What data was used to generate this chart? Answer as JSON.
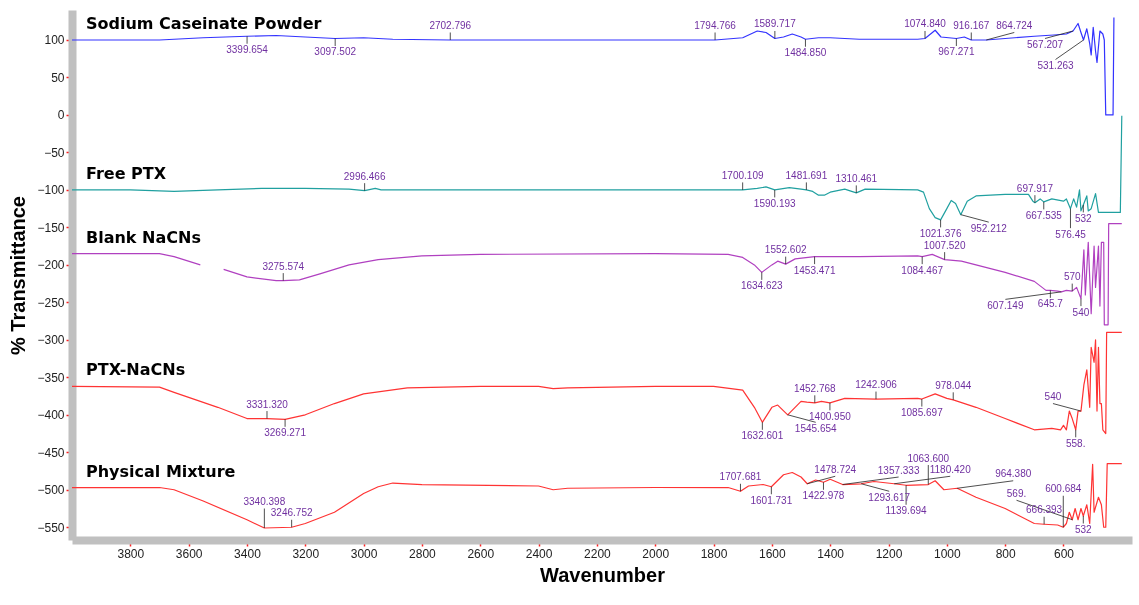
{
  "chart_data": {
    "type": "line",
    "xlabel": "Wavenumber",
    "ylabel": "% Transmittance",
    "xlim": [
      4000,
      365
    ],
    "ylim": [
      -567,
      140
    ],
    "xticks": [
      3800,
      3600,
      3400,
      3200,
      3000,
      2800,
      2600,
      2400,
      2200,
      2000,
      1800,
      1600,
      1400,
      1200,
      1000,
      800,
      600
    ],
    "yticks": [
      100,
      50,
      0,
      -50,
      -100,
      -150,
      -200,
      -250,
      -300,
      -350,
      -400,
      -450,
      -500,
      -550
    ],
    "grid": false,
    "line_style": "solid",
    "marker": "none",
    "series": [
      {
        "name": "Sodium Caseinate Powder",
        "color": "#3333ff",
        "x": [
          4000,
          3700,
          3550,
          3400,
          3300,
          3200,
          3097.502,
          3000,
          2900,
          2702.796,
          2400,
          2000,
          1794.766,
          1700,
          1650,
          1620,
          1589.717,
          1560,
          1530,
          1500,
          1484.85,
          1440,
          1400,
          1300,
          1200,
          1100,
          1074.84,
          1040,
          1020,
          967.271,
          940,
          916.167,
          864.724,
          800,
          700,
          620,
          590,
          567.207,
          550,
          540,
          531.263,
          520,
          510,
          505,
          498,
          490,
          485,
          475,
          465,
          460,
          455,
          430,
          427
        ],
        "values": [
          100,
          100,
          103,
          105,
          106,
          104,
          102,
          103,
          101,
          100,
          100,
          100,
          100,
          103,
          112,
          110,
          102,
          104,
          108,
          104,
          101,
          103,
          103,
          101,
          101,
          101,
          102,
          113,
          104,
          102,
          104,
          100,
          100,
          102,
          105,
          107,
          108,
          112,
          122,
          110,
          100,
          115,
          95,
          80,
          117,
          85,
          70,
          112,
          108,
          100,
          0,
          0,
          130
        ]
      },
      {
        "name": "Free PTX",
        "color": "#20a0a0",
        "x": [
          4000,
          3800,
          3650,
          3500,
          3350,
          3200,
          3050,
          2996.466,
          2960,
          2940,
          2000,
          1700.109,
          1650,
          1620,
          1590.193,
          1540,
          1500,
          1481.691,
          1460,
          1440,
          1420,
          1400,
          1350,
          1310.461,
          1280,
          1100,
          1080,
          1060,
          1040,
          1021.376,
          1000,
          985,
          970,
          952.212,
          930,
          900,
          800,
          720,
          705,
          697.917,
          680,
          667.535,
          640,
          600,
          590,
          576,
          565,
          555,
          545,
          540,
          532,
          520,
          515,
          505,
          490,
          480,
          470,
          430,
          405,
          400
        ],
        "values": [
          -100,
          -100,
          -102,
          -100,
          -98,
          -98,
          -99,
          -101,
          -98,
          -100,
          -100,
          -100,
          -98,
          -96,
          -100,
          -97,
          -99,
          -100,
          -102,
          -107,
          -107,
          -103,
          -99,
          -104,
          -99,
          -100,
          -103,
          -125,
          -137,
          -140,
          -125,
          -114,
          -118,
          -133,
          -115,
          -108,
          -106,
          -106,
          -115,
          -117,
          -112,
          -116,
          -112,
          -115,
          -112,
          -125,
          -112,
          -123,
          -100,
          -128,
          -120,
          -108,
          -128,
          -125,
          -105,
          -130,
          -130,
          -130,
          -130,
          -1
        ]
      },
      {
        "name": "Blank NaCNs",
        "color": "#b040c0",
        "x": [
          4000,
          3800,
          3700,
          3650,
          3560,
          3520,
          3480,
          3400,
          3300,
          3275.574,
          3220,
          3150,
          3050,
          2950,
          2800,
          2600,
          2000,
          1750,
          1700,
          1660,
          1634.623,
          1600,
          1580,
          1552.602,
          1520,
          1453.471,
          1300,
          1100,
          1084.467,
          1050,
          1007.52,
          950,
          800,
          700,
          660,
          645,
          620,
          607.149,
          590,
          570,
          555,
          540,
          530,
          525,
          515,
          505,
          495,
          490,
          480,
          475,
          470,
          462,
          460,
          447,
          445,
          400
        ],
        "values": [
          -185,
          -185,
          -185,
          -189,
          -200,
          null,
          -206,
          -216,
          -221,
          -221,
          -220,
          -212,
          -200,
          -193,
          -188,
          -186,
          -185,
          -186,
          -190,
          -200,
          -210,
          -200,
          -195,
          -199,
          -192,
          -189,
          -189,
          -188,
          -189,
          -186,
          -193,
          -195,
          -210,
          -222,
          -234,
          -234,
          -235,
          -236,
          -234,
          -235,
          -230,
          -245,
          -180,
          -240,
          -170,
          -265,
          -175,
          -230,
          -175,
          -255,
          -170,
          -170,
          -280,
          -280,
          -145,
          -145
        ]
      },
      {
        "name": "PTX-NaCNs",
        "color": "#ff3333",
        "x": [
          4000,
          3700,
          3650,
          3500,
          3400,
          3331.32,
          3269.271,
          3200,
          3100,
          3000,
          2850,
          2600,
          2400,
          2350,
          2300,
          2000,
          1800,
          1700,
          1660,
          1632.601,
          1600,
          1580,
          1545.654,
          1500,
          1480,
          1452.768,
          1430,
          1400.95,
          1350,
          1242.906,
          1100,
          1085.697,
          1040,
          1000,
          978.044,
          900,
          800,
          700,
          640,
          610,
          600,
          590,
          580,
          570,
          558,
          550,
          540,
          530,
          520,
          510,
          505,
          495,
          490,
          485,
          480,
          475,
          470,
          465,
          455,
          452,
          400
        ],
        "values": [
          -362,
          -363,
          -370,
          -390,
          -405,
          -405,
          -406,
          -400,
          -385,
          -372,
          -364,
          -362,
          -362,
          -365,
          -364,
          -362,
          -362,
          -367,
          -390,
          -410,
          -390,
          -387,
          -400,
          -382,
          -383,
          -384,
          -382,
          -384,
          -378,
          -379,
          -378,
          -379,
          -372,
          -378,
          -380,
          -390,
          -405,
          -420,
          -418,
          -420,
          -414,
          -420,
          -395,
          -405,
          -420,
          -395,
          -395,
          -360,
          -340,
          -390,
          -310,
          -330,
          -300,
          -395,
          -310,
          -385,
          -385,
          -420,
          -425,
          -290,
          -290
        ]
      },
      {
        "name": "Physical Mixture",
        "color": "#ff3333",
        "x": [
          4000,
          3700,
          3650,
          3550,
          3400,
          3340.398,
          3246.752,
          3200,
          3100,
          3000,
          2950,
          2900,
          2800,
          2400,
          2350,
          2300,
          2000,
          1750,
          1707.681,
          1680,
          1630,
          1601.731,
          1560,
          1530,
          1500,
          1478.724,
          1450,
          1422.978,
          1400,
          1357.333,
          1293.617,
          1250,
          1180.42,
          1139.694,
          1063.6,
          1040,
          1010,
          964.38,
          900,
          800,
          700,
          666.393,
          620,
          600.684,
          590,
          580,
          570,
          560,
          550,
          540,
          532,
          520,
          510,
          500,
          495,
          480,
          470,
          462,
          455,
          450,
          400
        ],
        "values": [
          -497,
          -497,
          -500,
          -515,
          -540,
          -551,
          -550,
          -545,
          -530,
          -505,
          -496,
          -491,
          -493,
          -495,
          -500,
          -498,
          -497,
          -497,
          -502,
          -495,
          -493,
          -496,
          -480,
          -477,
          -483,
          -492,
          -487,
          -490,
          -486,
          -493,
          -492,
          -489,
          -492,
          -494,
          -493,
          -488,
          -500,
          -498,
          -510,
          -525,
          -545,
          -546,
          -547,
          -550,
          -545,
          -530,
          -540,
          -525,
          -540,
          -525,
          -535,
          -520,
          -545,
          -466,
          -530,
          -510,
          -520,
          -550,
          -550,
          -465,
          -465
        ]
      }
    ],
    "annotations": [
      {
        "text": "3399.654",
        "x": 3399.654,
        "y": 105
      },
      {
        "text": "3097.502",
        "x": 3097.502,
        "y": 102
      },
      {
        "text": "2702.796",
        "x": 2702.796,
        "y": 100
      },
      {
        "text": "1794.766",
        "x": 1794.766,
        "y": 100
      },
      {
        "text": "1589.717",
        "x": 1589.717,
        "y": 102
      },
      {
        "text": "1484.850",
        "x": 1484.85,
        "y": 101
      },
      {
        "text": "1074.840",
        "x": 1074.84,
        "y": 102
      },
      {
        "text": "967.271",
        "x": 967.271,
        "y": 102
      },
      {
        "text": "916.167",
        "x": 916.167,
        "y": 100
      },
      {
        "text": "864.724",
        "x": 864.724,
        "y": 100
      },
      {
        "text": "567.207",
        "x": 567.207,
        "y": 112
      },
      {
        "text": "531.263",
        "x": 531.263,
        "y": 100
      },
      {
        "text": "2996.466",
        "x": 2996.466,
        "y": -101
      },
      {
        "text": "1700.109",
        "x": 1700.109,
        "y": -100
      },
      {
        "text": "1590.193",
        "x": 1590.193,
        "y": -100
      },
      {
        "text": "1481.691",
        "x": 1481.691,
        "y": -100
      },
      {
        "text": "1310.461",
        "x": 1310.461,
        "y": -104
      },
      {
        "text": "1021.376",
        "x": 1021.376,
        "y": -140
      },
      {
        "text": "952.212",
        "x": 952.212,
        "y": -133
      },
      {
        "text": "697.917",
        "x": 697.917,
        "y": -117
      },
      {
        "text": "667.535",
        "x": 667.535,
        "y": -116
      },
      {
        "text": "576.45",
        "x": 576,
        "y": -125
      },
      {
        "text": "532",
        "x": 532,
        "y": -120
      },
      {
        "text": "3275.574",
        "x": 3275.574,
        "y": -221
      },
      {
        "text": "1634.623",
        "x": 1634.623,
        "y": -210
      },
      {
        "text": "1552.602",
        "x": 1552.602,
        "y": -199
      },
      {
        "text": "1453.471",
        "x": 1453.471,
        "y": -189
      },
      {
        "text": "1084.467",
        "x": 1084.467,
        "y": -189
      },
      {
        "text": "1007.520",
        "x": 1007.52,
        "y": -193
      },
      {
        "text": "645.7",
        "x": 645,
        "y": -234
      },
      {
        "text": "607.149",
        "x": 607.149,
        "y": -236
      },
      {
        "text": "570",
        "x": 570,
        "y": -235
      },
      {
        "text": "540",
        "x": 540,
        "y": -245
      },
      {
        "text": "3331.320",
        "x": 3331.32,
        "y": -405
      },
      {
        "text": "3269.271",
        "x": 3269.271,
        "y": -406
      },
      {
        "text": "1632.601",
        "x": 1632.601,
        "y": -410
      },
      {
        "text": "1545.654",
        "x": 1545.654,
        "y": -400
      },
      {
        "text": "1452.768",
        "x": 1452.768,
        "y": -384
      },
      {
        "text": "1400.950",
        "x": 1400.95,
        "y": -384
      },
      {
        "text": "1242.906",
        "x": 1242.906,
        "y": -379
      },
      {
        "text": "1085.697",
        "x": 1085.697,
        "y": -379
      },
      {
        "text": "978.044",
        "x": 978.044,
        "y": -380
      },
      {
        "text": "540",
        "x": 540,
        "y": -395
      },
      {
        "text": "558.",
        "x": 558,
        "y": -420
      },
      {
        "text": "3340.398",
        "x": 3340.398,
        "y": -551
      },
      {
        "text": "3246.752",
        "x": 3246.752,
        "y": -550
      },
      {
        "text": "1707.681",
        "x": 1707.681,
        "y": -502
      },
      {
        "text": "1601.731",
        "x": 1601.731,
        "y": -496
      },
      {
        "text": "1478.724",
        "x": 1478.724,
        "y": -492
      },
      {
        "text": "1422.978",
        "x": 1422.978,
        "y": -490
      },
      {
        "text": "1357.333",
        "x": 1357.333,
        "y": -493
      },
      {
        "text": "1293.617",
        "x": 1293.617,
        "y": -492
      },
      {
        "text": "1180.420",
        "x": 1180.42,
        "y": -492
      },
      {
        "text": "1139.694",
        "x": 1139.694,
        "y": -494
      },
      {
        "text": "1063.600",
        "x": 1063.6,
        "y": -493
      },
      {
        "text": "964.380",
        "x": 964.38,
        "y": -498
      },
      {
        "text": "666.393",
        "x": 666.393,
        "y": -546
      },
      {
        "text": "600.684",
        "x": 600.684,
        "y": -550
      },
      {
        "text": "532",
        "x": 532,
        "y": -535
      },
      {
        "text": "569.",
        "x": 569,
        "y": -540
      }
    ]
  }
}
